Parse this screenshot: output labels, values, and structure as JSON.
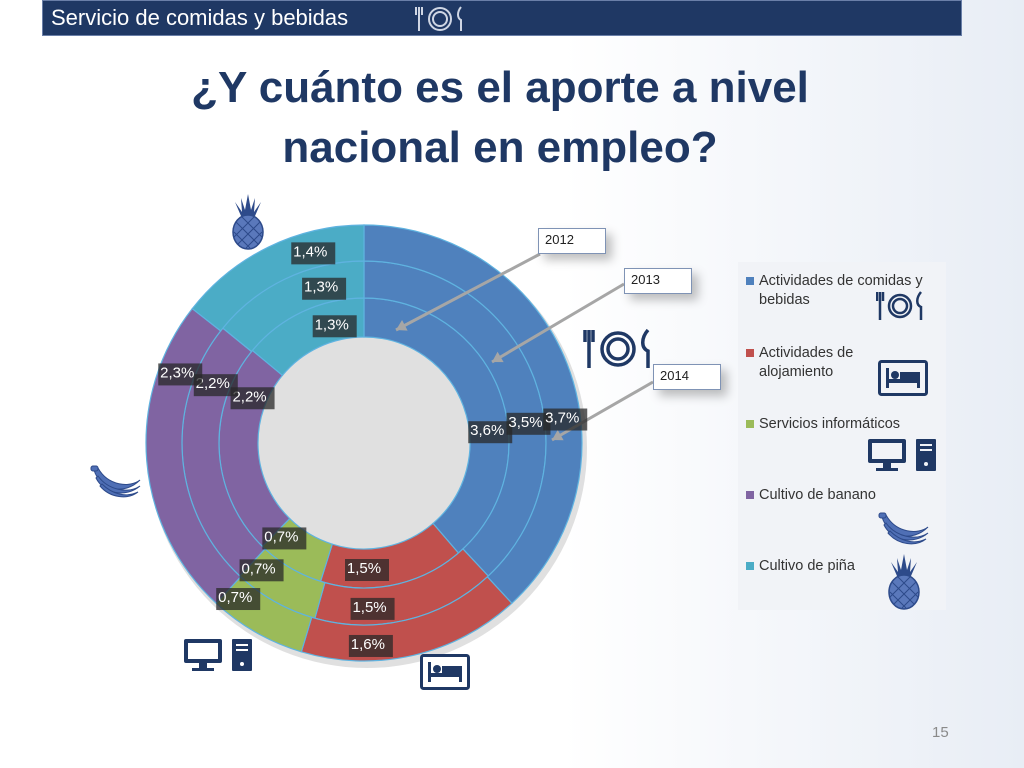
{
  "header": {
    "section_title": "Servicio de comidas y bebidas"
  },
  "slide": {
    "title_line1": "¿Y cuánto es el aporte a nivel",
    "title_line2": "nacional en empleo?",
    "page_number": "15"
  },
  "callouts": [
    "2012",
    "2013",
    "2014"
  ],
  "colors": {
    "comidas": "#4f81bd",
    "alojamiento": "#c0504d",
    "informaticos": "#9bbb59",
    "banano": "#8064a2",
    "pina": "#4bacc6",
    "navy": "#1f3864"
  },
  "icons": [
    "restaurant-icon",
    "bed-icon",
    "computer-icon",
    "banana-icon",
    "pineapple-icon"
  ],
  "chart_data": {
    "type": "donut",
    "title": "",
    "rings": [
      "2012",
      "2013",
      "2014"
    ],
    "categories": [
      "Actividades de comidas y bebidas",
      "Actividades de alojamiento",
      "Servicios informáticos",
      "Cultivo de banano",
      "Cultivo de piña"
    ],
    "series": [
      {
        "name": "2012",
        "values": [
          3.6,
          1.5,
          0.7,
          2.2,
          1.3
        ],
        "labels": [
          "3,6%",
          "1,5%",
          "0,7%",
          "2,2%",
          "1,3%"
        ]
      },
      {
        "name": "2013",
        "values": [
          3.5,
          1.5,
          0.7,
          2.2,
          1.3
        ],
        "labels": [
          "3,5%",
          "1,5%",
          "0,7%",
          "2,2%",
          "1,3%"
        ]
      },
      {
        "name": "2014",
        "values": [
          3.7,
          1.6,
          0.7,
          2.3,
          1.4
        ],
        "labels": [
          "3,7%",
          "1,6%",
          "0,7%",
          "2,3%",
          "1,4%"
        ]
      }
    ],
    "legend_position": "right"
  }
}
